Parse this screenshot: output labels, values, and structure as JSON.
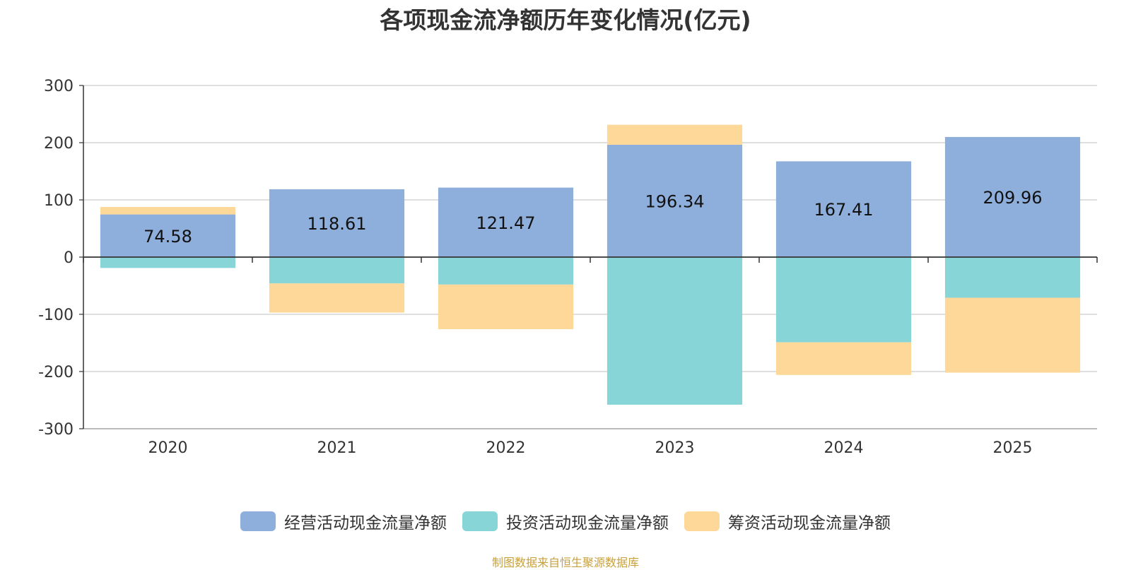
{
  "title": "各项现金流净额历年变化情况(亿元)",
  "source": "制图数据来自恒生聚源数据库",
  "colors": {
    "source_text": "#c8a03c",
    "axis": "#333333",
    "grid": "#cccccc",
    "label": "#333333"
  },
  "chart_data": {
    "type": "bar",
    "stacked": true,
    "title": "各项现金流净额历年变化情况(亿元)",
    "categories": [
      "2020",
      "2021",
      "2022",
      "2023",
      "2024",
      "2025"
    ],
    "ylim": [
      -300,
      300
    ],
    "yticks": [
      300,
      200,
      100,
      0,
      -100,
      -200,
      -300
    ],
    "grid": true,
    "legend_position": "bottom",
    "series": [
      {
        "name": "经营活动现金流量净额",
        "color": "#8eaedb",
        "values": [
          74.58,
          118.61,
          121.47,
          196.34,
          167.41,
          209.96
        ],
        "labels": [
          "74.58",
          "118.61",
          "121.47",
          "196.34",
          "167.41",
          "209.96"
        ]
      },
      {
        "name": "投资活动现金流量净额",
        "color": "#88d5d8",
        "values": [
          -19,
          -46,
          -48,
          -258,
          -149,
          -71
        ]
      },
      {
        "name": "筹资活动现金流量净额",
        "color": "#fed899",
        "values": [
          13,
          -51,
          -78,
          35,
          -57,
          -131
        ]
      }
    ]
  }
}
